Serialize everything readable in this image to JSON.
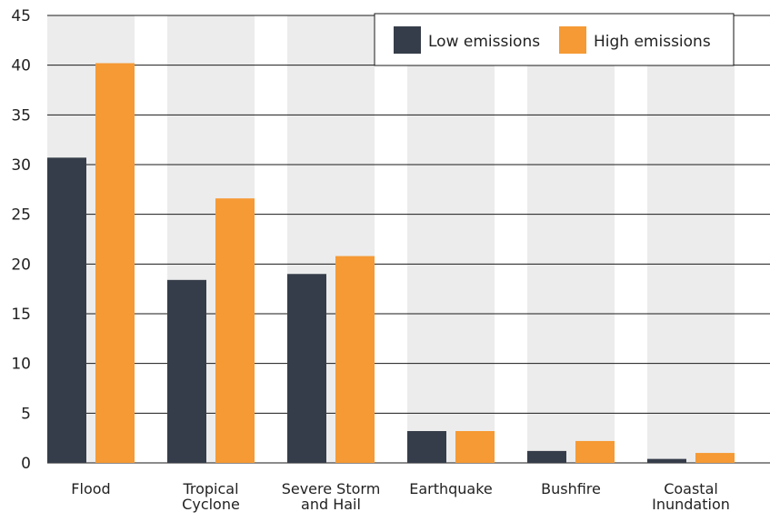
{
  "chart_data": {
    "type": "bar",
    "categories": [
      [
        "Flood"
      ],
      [
        "Tropical",
        "Cyclone"
      ],
      [
        "Severe Storm",
        "and Hail"
      ],
      [
        "Earthquake"
      ],
      [
        "Bushfire"
      ],
      [
        "Coastal",
        "Inundation"
      ]
    ],
    "series": [
      {
        "name": "Low emissions",
        "values": [
          30.7,
          18.4,
          19.0,
          3.2,
          1.2,
          0.4
        ]
      },
      {
        "name": "High emissions",
        "values": [
          40.2,
          26.6,
          20.8,
          3.2,
          2.2,
          1.0
        ]
      }
    ],
    "yticks": [
      "0",
      "5",
      "10",
      "15",
      "20",
      "25",
      "30",
      "35",
      "40",
      "45"
    ],
    "ylim": [
      0,
      45
    ],
    "grid": true,
    "legend_position": "top-right",
    "title": "",
    "xlabel": "",
    "ylabel": ""
  },
  "colors": {
    "low": "#363d4a",
    "high": "#f59a34",
    "band": "#ececec",
    "grid": "#1a1a1a"
  }
}
